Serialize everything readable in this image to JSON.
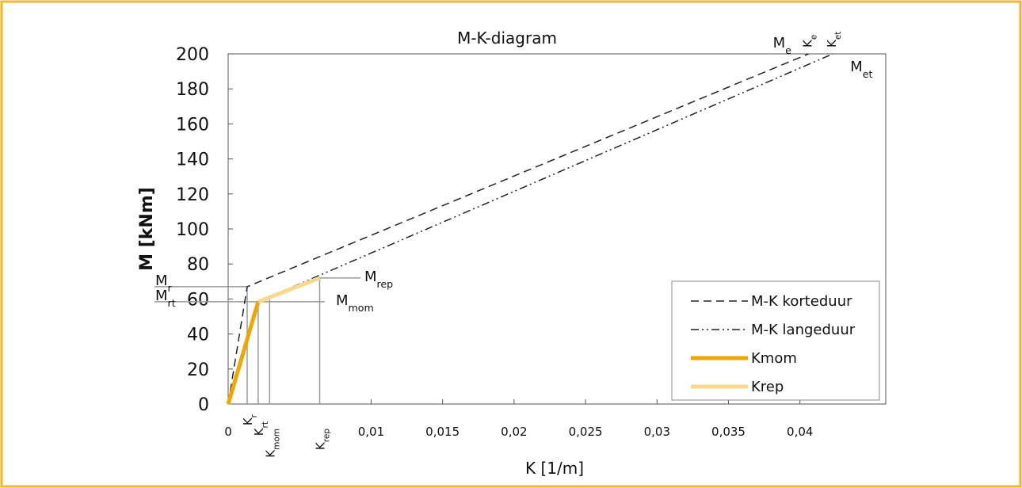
{
  "chart_data": {
    "type": "line",
    "title": "M-K-diagram",
    "x_label": "K [1/m]",
    "y_label": "M [kNm]",
    "xlim": [
      0,
      0.046
    ],
    "ylim": [
      0,
      200
    ],
    "xticks": [
      0,
      {
        "value": 0.01,
        "label": "0,01"
      },
      {
        "value": 0.015,
        "label": "0,015"
      },
      {
        "value": 0.02,
        "label": "0,02"
      },
      {
        "value": 0.025,
        "label": "0,025"
      },
      {
        "value": 0.03,
        "label": "0,03"
      },
      {
        "value": 0.035,
        "label": "0,035"
      },
      {
        "value": 0.04,
        "label": "0,04"
      }
    ],
    "yticks": [
      0,
      20,
      40,
      60,
      80,
      100,
      120,
      140,
      160,
      180,
      200
    ],
    "legend": "lower right",
    "series": [
      {
        "name": "M-K korteduur",
        "color": "#222222",
        "style": "dashed",
        "x": [
          0,
          0.00133,
          0.0406
        ],
        "values": [
          0,
          67,
          200
        ]
      },
      {
        "name": "M-K langeduur",
        "color": "#222222",
        "style": "dashdotdot",
        "x": [
          0,
          0.0021,
          0.0423
        ],
        "values": [
          0,
          58.4,
          200
        ]
      },
      {
        "name": "Kmom",
        "color": "#f0a500",
        "style": "thick",
        "x": [
          0,
          0.0021
        ],
        "values": [
          0,
          58.4
        ]
      },
      {
        "name": "Krep",
        "color": "#f8d88c",
        "style": "thick",
        "x": [
          0.0021,
          0.0064
        ],
        "values": [
          58.4,
          72
        ]
      }
    ],
    "k_markers": [
      {
        "text": "K",
        "sub": "r",
        "x": 0.00133,
        "m": 67
      },
      {
        "text": "K",
        "sub": "rt",
        "x": 0.0021,
        "m": 58.4
      },
      {
        "text": "K",
        "sub": "mom",
        "x": 0.0029,
        "m": 61
      },
      {
        "text": "K",
        "sub": "rep",
        "x": 0.0064,
        "m": 72
      }
    ],
    "m_markers": [
      {
        "text": "M",
        "sub": "r",
        "value": 67
      },
      {
        "text": "M",
        "sub": "rt",
        "value": 58.4
      },
      {
        "text": "M",
        "sub": "rep",
        "value": 72
      },
      {
        "text": "M",
        "sub": "mom",
        "value": 58.4
      }
    ],
    "end_labels": [
      {
        "text": "M",
        "sub": "e"
      },
      {
        "text": "K",
        "sub": "e"
      },
      {
        "text": "K",
        "sub": "et"
      },
      {
        "text": "M",
        "sub": "et"
      }
    ]
  }
}
